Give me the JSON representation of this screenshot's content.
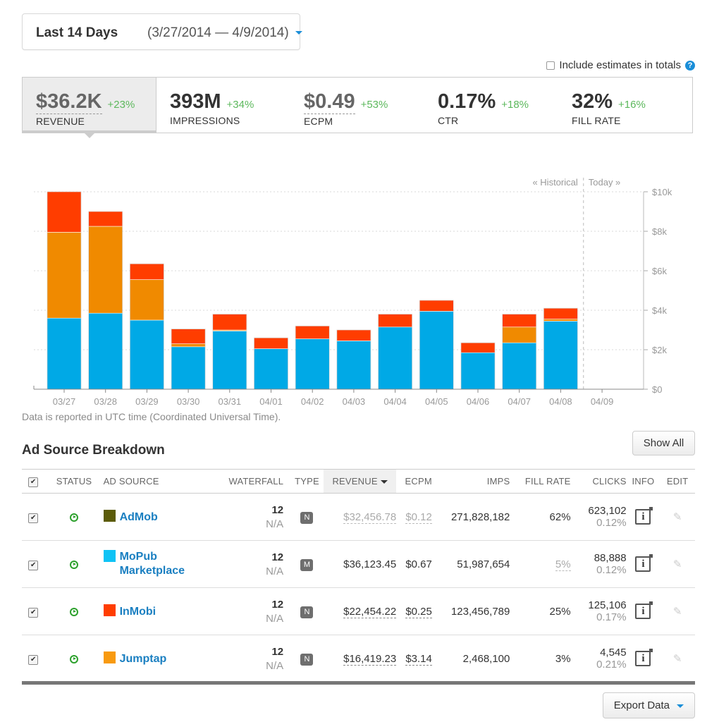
{
  "date_range": {
    "label": "Last 14 Days",
    "range": "(3/27/2014 — 4/9/2014)"
  },
  "estimates_label": "Include estimates in totals",
  "help_glyph": "?",
  "metrics": [
    {
      "value": "$36.2K",
      "change": "+23%",
      "label": "REVENUE"
    },
    {
      "value": "393M",
      "change": "+34%",
      "label": "IMPRESSIONS"
    },
    {
      "value": "$0.49",
      "change": "+53%",
      "label": "ECPM"
    },
    {
      "value": "0.17%",
      "change": "+18%",
      "label": "CTR"
    },
    {
      "value": "32%",
      "change": "+16%",
      "label": "FILL RATE"
    }
  ],
  "chart_data": {
    "type": "bar",
    "stacked": true,
    "categories": [
      "03/27",
      "03/28",
      "03/29",
      "03/30",
      "03/31",
      "04/01",
      "04/02",
      "04/03",
      "04/04",
      "04/05",
      "04/06",
      "04/07",
      "04/08",
      "04/09"
    ],
    "series": [
      {
        "color": "#00a9e6",
        "values": [
          3600,
          3850,
          3500,
          2150,
          2950,
          2050,
          2550,
          2450,
          3150,
          3950,
          1850,
          2350,
          3450,
          0
        ]
      },
      {
        "color": "#f08a00",
        "values": [
          4350,
          4400,
          2050,
          150,
          50,
          0,
          0,
          0,
          0,
          0,
          0,
          800,
          100,
          0
        ]
      },
      {
        "color": "#ff3d00",
        "values": [
          2050,
          750,
          800,
          750,
          800,
          550,
          650,
          550,
          650,
          550,
          500,
          650,
          550,
          0
        ]
      }
    ],
    "y_ticks": [
      "$0",
      "$2k",
      "$4k",
      "$6k",
      "$8k",
      "$10k"
    ],
    "ylim": [
      0,
      10000
    ],
    "historical_label": "« Historical",
    "today_label": "Today »",
    "grid": true
  },
  "chart_note": "Data is reported in UTC time (Coordinated Universal Time).",
  "breakdown": {
    "title": "Ad Source Breakdown",
    "show_all": "Show All",
    "columns": [
      "STATUS",
      "AD SOURCE",
      "WATERFALL",
      "TYPE",
      "REVENUE",
      "ECPM",
      "IMPS",
      "FILL RATE",
      "CLICKS",
      "INFO",
      "EDIT"
    ],
    "check_glyph": "✔",
    "rows": [
      {
        "name": "AdMob",
        "color": "#5c5c0a",
        "waterfall": "12",
        "waterfall_sub": "N/A",
        "type": "N",
        "revenue": "$32,456.78",
        "ecpm": "$0.12",
        "imps": "271,828,182",
        "fill": "62%",
        "clicks": "623,102",
        "ctr": "0.12%"
      },
      {
        "name": "MoPub Marketplace",
        "color": "#0fc3f5",
        "waterfall": "12",
        "waterfall_sub": "N/A",
        "type": "M",
        "revenue": "$36,123.45",
        "ecpm": "$0.67",
        "imps": "51,987,654",
        "fill": "5%",
        "clicks": "88,888",
        "ctr": "0.12%"
      },
      {
        "name": "InMobi",
        "color": "#ff3d00",
        "waterfall": "12",
        "waterfall_sub": "N/A",
        "type": "N",
        "revenue": "$22,454.22",
        "ecpm": "$0.25",
        "imps": "123,456,789",
        "fill": "25%",
        "clicks": "125,106",
        "ctr": "0.17%"
      },
      {
        "name": "Jumptap",
        "color": "#f89a10",
        "waterfall": "12",
        "waterfall_sub": "N/A",
        "type": "N",
        "revenue": "$16,419.23",
        "ecpm": "$3.14",
        "imps": "2,468,100",
        "fill": "3%",
        "clicks": "4,545",
        "ctr": "0.21%"
      }
    ],
    "info_glyph": "i",
    "edit_glyph": "✎"
  },
  "export_label": "Export Data"
}
